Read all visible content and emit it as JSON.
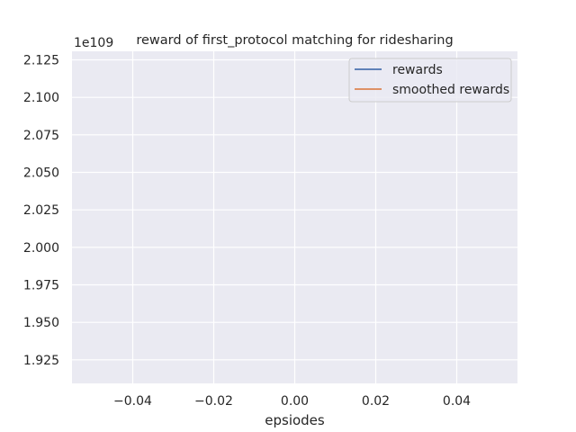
{
  "chart_data": {
    "type": "line",
    "title": "reward of first_protocol matching for ridesharing",
    "xlabel": "epsiodes",
    "ylabel": "",
    "y_offset_text": "1e109",
    "xlim": [
      -0.055,
      0.055
    ],
    "ylim": [
      1.9093,
      2.1307
    ],
    "x_ticks": [
      -0.04,
      -0.02,
      0.0,
      0.02,
      0.04
    ],
    "x_tick_labels": [
      "−0.04",
      "−0.02",
      "0.00",
      "0.02",
      "0.04"
    ],
    "y_ticks": [
      1.925,
      1.95,
      1.975,
      2.0,
      2.025,
      2.05,
      2.075,
      2.1,
      2.125
    ],
    "y_tick_labels": [
      "1.925",
      "1.950",
      "1.975",
      "2.000",
      "2.025",
      "2.050",
      "2.075",
      "2.100",
      "2.125"
    ],
    "grid": true,
    "legend_position": "top-right",
    "series": [
      {
        "name": "rewards",
        "color": "#4c72b0",
        "x": [],
        "y": []
      },
      {
        "name": "smoothed rewards",
        "color": "#dd8452",
        "x": [],
        "y": []
      }
    ]
  }
}
